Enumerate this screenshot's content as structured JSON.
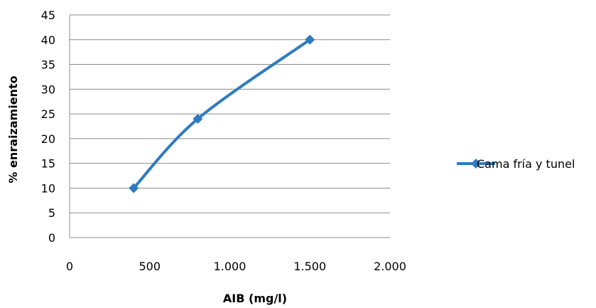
{
  "chart_data": {
    "type": "line",
    "title": "",
    "xlabel": "AIB (mg/l)",
    "ylabel": "% enraizamiento",
    "xlim": [
      0,
      2000
    ],
    "ylim": [
      0,
      45
    ],
    "x_ticks": [
      0,
      500,
      1000,
      1500,
      2000
    ],
    "x_tick_labels": [
      "0",
      "500",
      "1.000",
      "1.500",
      "2.000"
    ],
    "y_ticks": [
      0,
      5,
      10,
      15,
      20,
      25,
      30,
      35,
      40,
      45
    ],
    "y_tick_labels": [
      "0",
      "5",
      "10",
      "15",
      "20",
      "25",
      "30",
      "35",
      "40",
      "45"
    ],
    "grid": "horizontal",
    "legend_position": "right",
    "series": [
      {
        "name": "Cama fría y tunel",
        "color": "#2E7BC1",
        "marker": "diamond",
        "smooth": true,
        "x": [
          400,
          800,
          1500
        ],
        "y": [
          10,
          24,
          40
        ]
      }
    ]
  }
}
